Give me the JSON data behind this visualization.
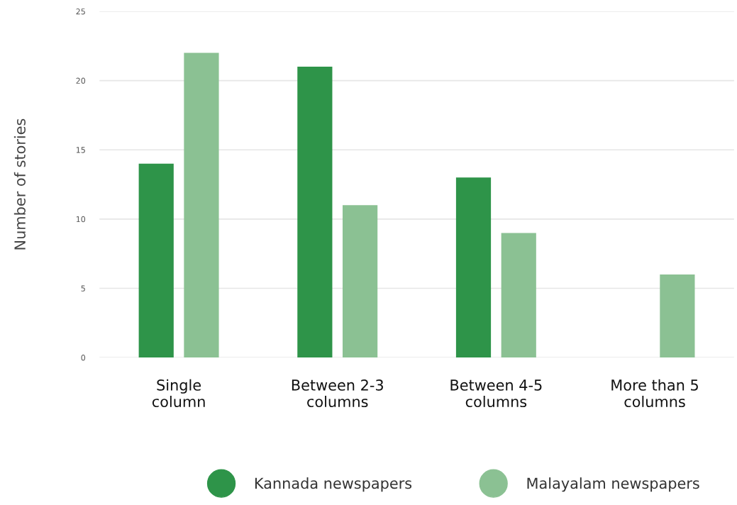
{
  "chart_data": {
    "type": "bar",
    "ylabel": "Number of stories",
    "categories": [
      "Single column",
      "Between 2-3 columns",
      "Between 4-5 columns",
      "More than 5 columns"
    ],
    "series": [
      {
        "name": "Kannada newspapers",
        "color": "#2e9449",
        "values": [
          14,
          21,
          13,
          0
        ]
      },
      {
        "name": "Malayalam newspapers",
        "color": "#8bc193",
        "values": [
          22,
          11,
          9,
          6
        ]
      }
    ],
    "ylim": [
      0,
      25
    ],
    "yticks": [
      0,
      5,
      10,
      15,
      20,
      25
    ],
    "grid": "y",
    "legend": "bottom"
  }
}
